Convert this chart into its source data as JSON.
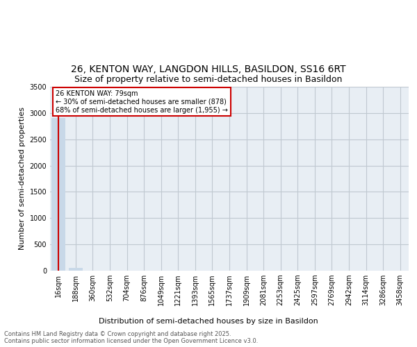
{
  "title_line1": "26, KENTON WAY, LANGDON HILLS, BASILDON, SS16 6RT",
  "title_line2": "Size of property relative to semi-detached houses in Basildon",
  "xlabel": "Distribution of semi-detached houses by size in Basildon",
  "ylabel": "Number of semi-detached properties",
  "annotation_title": "26 KENTON WAY: 79sqm",
  "annotation_line2": "← 30% of semi-detached houses are smaller (878)",
  "annotation_line3": "68% of semi-detached houses are larger (1,955) →",
  "footer_line1": "Contains HM Land Registry data © Crown copyright and database right 2025.",
  "footer_line2": "Contains public sector information licensed under the Open Government Licence v3.0.",
  "bar_color": "#c8d8e8",
  "marker_color": "#cc0000",
  "annotation_box_color": "#cc0000",
  "bg_color": "#e8eef4",
  "categories": [
    "16sqm",
    "188sqm",
    "360sqm",
    "532sqm",
    "704sqm",
    "876sqm",
    "1049sqm",
    "1221sqm",
    "1393sqm",
    "1565sqm",
    "1737sqm",
    "1909sqm",
    "2081sqm",
    "2253sqm",
    "2425sqm",
    "2597sqm",
    "2769sqm",
    "2942sqm",
    "3114sqm",
    "3286sqm",
    "3458sqm"
  ],
  "values": [
    2900,
    50,
    2,
    1,
    0,
    0,
    0,
    0,
    0,
    0,
    0,
    0,
    0,
    0,
    0,
    0,
    0,
    0,
    0,
    0,
    0
  ],
  "ylim": [
    0,
    3500
  ],
  "yticks": [
    0,
    500,
    1000,
    1500,
    2000,
    2500,
    3000,
    3500
  ],
  "grid_color": "#c0c8d0",
  "title_fontsize": 10,
  "subtitle_fontsize": 9,
  "axis_label_fontsize": 8,
  "tick_fontsize": 7,
  "footer_fontsize": 6
}
